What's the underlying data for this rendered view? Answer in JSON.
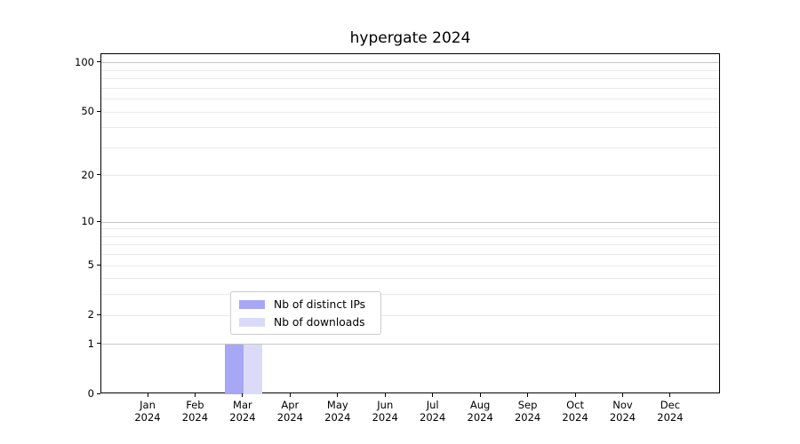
{
  "figure": {
    "background": "#ffffff",
    "axis_color": "#000000"
  },
  "chart_data": {
    "type": "bar",
    "title": "hypergate 2024",
    "categories": [
      "Jan 2024",
      "Feb 2024",
      "Mar 2024",
      "Apr 2024",
      "May 2024",
      "Jun 2024",
      "Jul 2024",
      "Aug 2024",
      "Sep 2024",
      "Oct 2024",
      "Nov 2024",
      "Dec 2024"
    ],
    "series": [
      {
        "name": "Nb of distinct IPs",
        "color": "#a7a7f6",
        "values": [
          0,
          0,
          1,
          0,
          0,
          0,
          0,
          0,
          0,
          0,
          0,
          0
        ]
      },
      {
        "name": "Nb of downloads",
        "color": "#dbdbf9",
        "values": [
          0,
          0,
          1,
          0,
          0,
          0,
          0,
          0,
          0,
          0,
          0,
          0
        ]
      }
    ],
    "xlabel": "",
    "ylabel": "",
    "y_scale": "log1p",
    "y_ticks": [
      0,
      1,
      2,
      5,
      10,
      20,
      50,
      100
    ],
    "ylim": [
      0,
      113.3
    ],
    "grid": {
      "horizontal": true,
      "major_values": [
        1,
        10,
        100
      ],
      "minor_values": [
        2,
        3,
        4,
        5,
        6,
        7,
        8,
        9,
        20,
        30,
        40,
        50,
        60,
        70,
        80,
        90
      ],
      "major_color": "#c6c6c6",
      "minor_color": "#eaeaea"
    },
    "legend": {
      "position": "inside-bottom-center",
      "border_color": "#cccccc",
      "background": "#ffffff"
    }
  }
}
